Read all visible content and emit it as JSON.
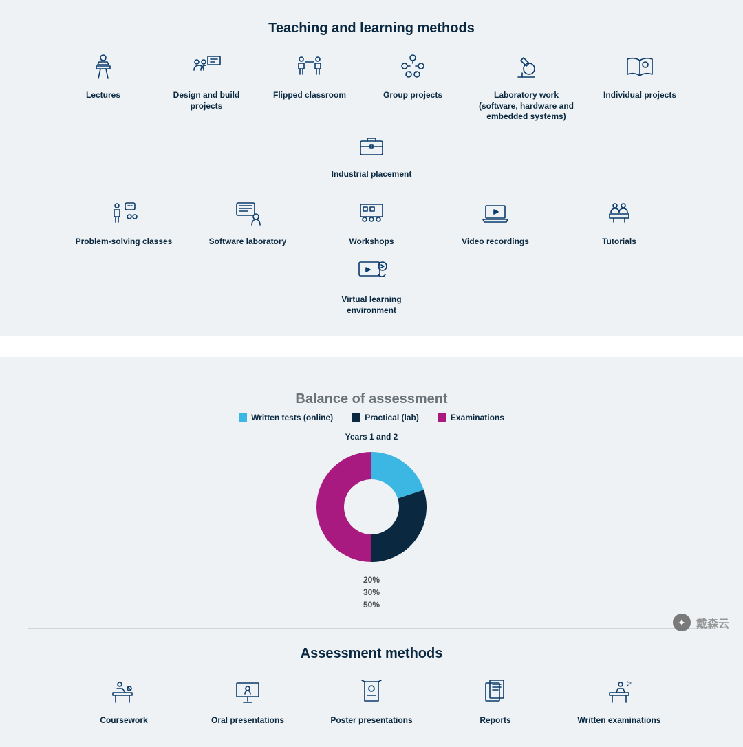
{
  "teaching": {
    "title": "Teaching and learning methods",
    "items_row1": [
      {
        "label": "Lectures",
        "icon": "lectern"
      },
      {
        "label": "Design and build projects",
        "icon": "team-board"
      },
      {
        "label": "Flipped classroom",
        "icon": "two-chairs"
      },
      {
        "label": "Group projects",
        "icon": "people-network"
      },
      {
        "label": "Laboratory work (software, hardware and embedded systems)",
        "icon": "microscope"
      },
      {
        "label": "Individual projects",
        "icon": "open-book"
      },
      {
        "label": "Industrial placement",
        "icon": "briefcase"
      }
    ],
    "items_row2": [
      {
        "label": "Problem-solving classes",
        "icon": "problem-solving"
      },
      {
        "label": "Software laboratory",
        "icon": "computer-user"
      },
      {
        "label": "Workshops",
        "icon": "workshop"
      },
      {
        "label": "Video recordings",
        "icon": "laptop-video"
      },
      {
        "label": "Tutorials",
        "icon": "tutorial"
      },
      {
        "label": "Virtual learning environment",
        "icon": "vle"
      }
    ]
  },
  "balance": {
    "title": "Balance of assessment",
    "legend": [
      {
        "label": "Written tests (online)",
        "color": "#3cb6e3"
      },
      {
        "label": "Practical (lab)",
        "color": "#0a2840"
      },
      {
        "label": "Examinations",
        "color": "#a81a7f"
      }
    ],
    "chart": {
      "type": "donut",
      "title": "Years 1 and 2",
      "slices": [
        {
          "value": 20,
          "color": "#3cb6e3"
        },
        {
          "value": 30,
          "color": "#0a2840"
        },
        {
          "value": 50,
          "color": "#a81a7f"
        }
      ],
      "inner_radius_ratio": 0.5,
      "outer_radius": 80,
      "start_angle_deg": -90,
      "background": "#eef2f4"
    },
    "pct_labels": [
      "20%",
      "30%",
      "50%"
    ]
  },
  "assessment": {
    "title": "Assessment methods",
    "items": [
      {
        "label": "Coursework",
        "icon": "desk-writing"
      },
      {
        "label": "Oral presentations",
        "icon": "presenter"
      },
      {
        "label": "Poster presentations",
        "icon": "poster"
      },
      {
        "label": "Reports",
        "icon": "reports"
      },
      {
        "label": "Written examinations",
        "icon": "exam-desk"
      }
    ]
  },
  "watermark": {
    "text": "戴森云"
  },
  "colors": {
    "icon": "#0a3a6b",
    "text": "#0a2840",
    "panel": "#eef2f4",
    "muted_title": "#6c7378"
  }
}
